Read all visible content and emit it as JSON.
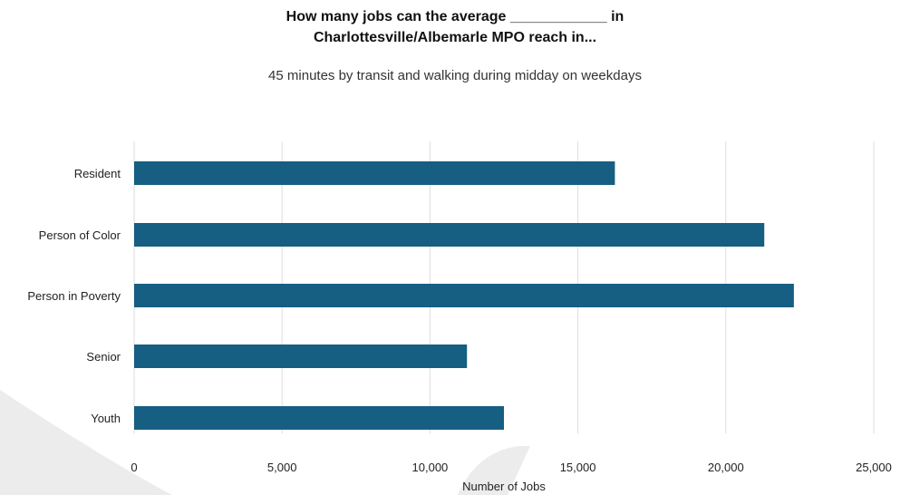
{
  "title_line1": "How many jobs can the average ____________ in",
  "title_line2": "Charlottesville/Albemarle MPO reach in...",
  "subtitle": "45 minutes by transit and walking during midday on weekdays",
  "colors": {
    "bar": "#165e82",
    "grid": "#dedede",
    "watermark": "#ececec"
  },
  "chart_data": {
    "type": "bar",
    "orientation": "horizontal",
    "categories": [
      "Resident",
      "Person of Color",
      "Person in Poverty",
      "Senior",
      "Youth"
    ],
    "values": [
      16250,
      21300,
      22300,
      11250,
      12500
    ],
    "xlabel": "Number of Jobs",
    "ylabel": "",
    "xlim": [
      0,
      25000
    ],
    "xticks": [
      0,
      5000,
      10000,
      15000,
      20000,
      25000
    ],
    "xtick_labels": [
      "0",
      "5,000",
      "10,000",
      "15,000",
      "20,000",
      "25,000"
    ],
    "grid": "vertical"
  }
}
